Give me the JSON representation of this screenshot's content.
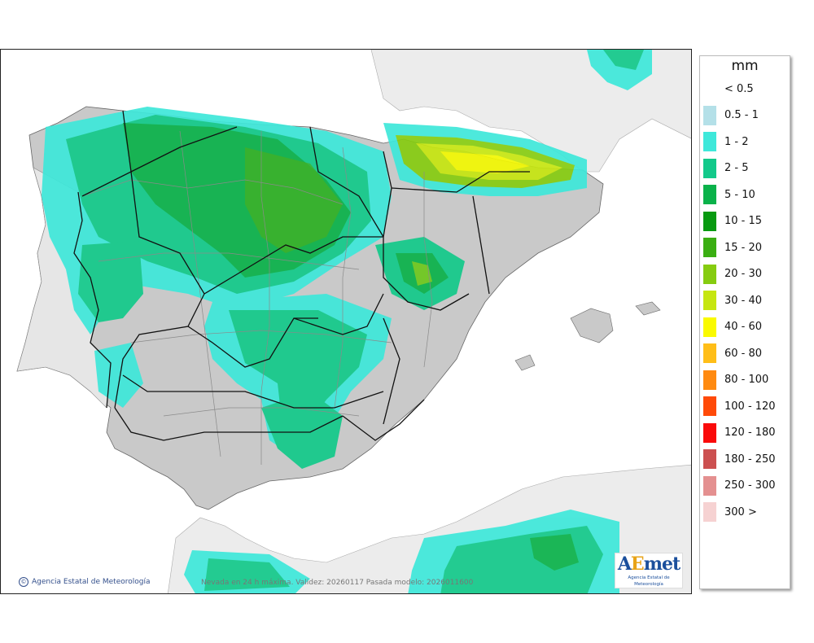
{
  "legend": {
    "unit": "mm",
    "items": [
      {
        "label": "< 0.5",
        "color": ""
      },
      {
        "label": "0.5 - 1",
        "color": "#b4e0e8"
      },
      {
        "label": "1 - 2",
        "color": "#3ee8da"
      },
      {
        "label": "2 - 5",
        "color": "#12c98a"
      },
      {
        "label": "5 - 10",
        "color": "#0ab24a"
      },
      {
        "label": "10 - 15",
        "color": "#089a10"
      },
      {
        "label": "15 - 20",
        "color": "#3aae12"
      },
      {
        "label": "20 - 30",
        "color": "#86cc10"
      },
      {
        "label": "30 - 40",
        "color": "#c6e610"
      },
      {
        "label": "40 - 60",
        "color": "#fafa00"
      },
      {
        "label": "60 - 80",
        "color": "#ffbe18"
      },
      {
        "label": "80 - 100",
        "color": "#ff8a10"
      },
      {
        "label": "100 - 120",
        "color": "#ff4a08"
      },
      {
        "label": "120 - 180",
        "color": "#fa0a0a"
      },
      {
        "label": "180 - 250",
        "color": "#cc5050"
      },
      {
        "label": "250 - 300",
        "color": "#e49090"
      },
      {
        "label": "300 >",
        "color": "#f6d2d2"
      }
    ]
  },
  "footer": {
    "credit": "Agencia Estatal de Meteorología",
    "validity": "Nevada en 24 h máxima. Validez: 20260117 Pasada modelo: 2026011600"
  },
  "logo": {
    "mark_a": "A",
    "mark_e": "E",
    "mark_rest": "met",
    "subtitle": "Agencia Estatal de Meteorología"
  },
  "colors": {
    "land": "#c9c9c9",
    "sea": "#ffffff",
    "foreign_land": "#ececec",
    "border_region": "#111111",
    "border_province": "#8a8a8a"
  }
}
